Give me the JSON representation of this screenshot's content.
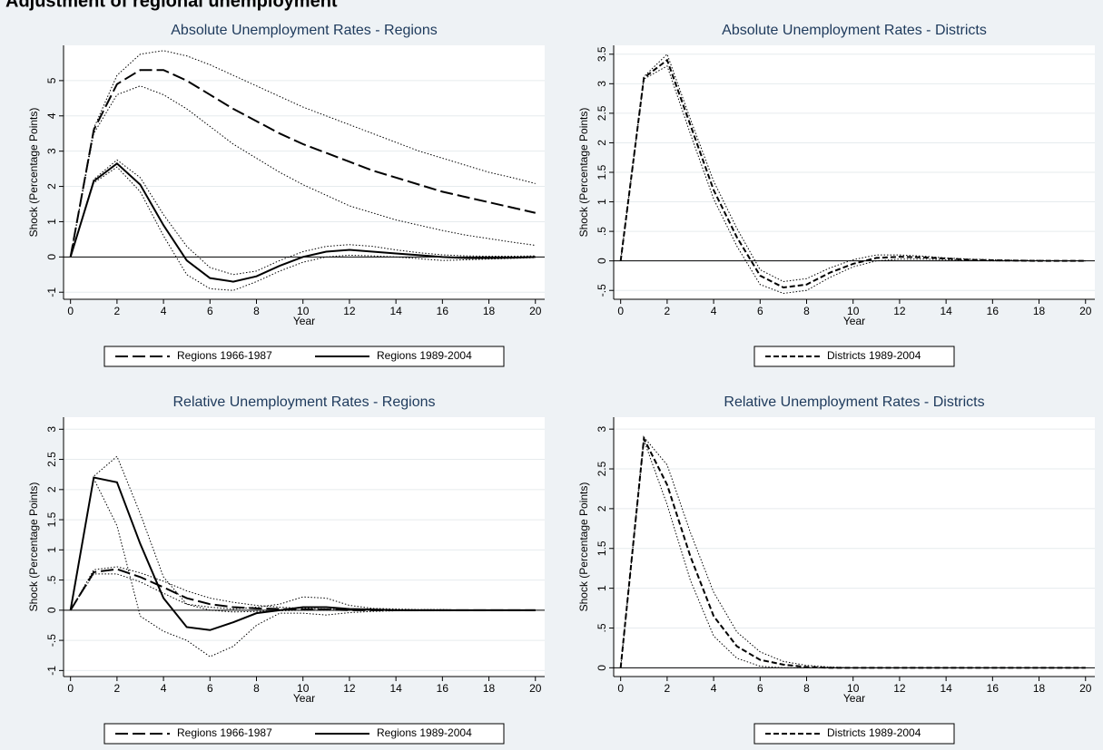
{
  "title": "Adjustment of regional unemployment",
  "chart_data": [
    {
      "type": "line",
      "title": "Absolute Unemployment Rates - Regions",
      "x_label": "Year",
      "y_label": "Shock (Percentage Points)",
      "x": [
        0,
        1,
        2,
        3,
        4,
        5,
        6,
        7,
        8,
        9,
        10,
        11,
        12,
        13,
        14,
        15,
        16,
        17,
        18,
        19,
        20
      ],
      "xlim": [
        -0.3,
        20.4
      ],
      "xticks": [
        0,
        2,
        4,
        6,
        8,
        10,
        12,
        14,
        16,
        18,
        20
      ],
      "ylim": [
        -1.2,
        6
      ],
      "yticks": [
        -1,
        0,
        1,
        2,
        3,
        4,
        5
      ],
      "grid": true,
      "legend": "bottom",
      "series": [
        {
          "name": "Regions 1966-1987",
          "color": "#000000",
          "style": "dash",
          "values": [
            0,
            3.6,
            4.9,
            5.3,
            5.3,
            5.0,
            4.6,
            4.2,
            3.85,
            3.5,
            3.2,
            2.95,
            2.7,
            2.45,
            2.25,
            2.05,
            1.85,
            1.7,
            1.55,
            1.4,
            1.25
          ],
          "upper": [
            0,
            3.65,
            5.15,
            5.75,
            5.85,
            5.7,
            5.45,
            5.15,
            4.85,
            4.55,
            4.25,
            4.0,
            3.75,
            3.5,
            3.25,
            3.0,
            2.8,
            2.6,
            2.4,
            2.25,
            2.08
          ],
          "lower": [
            0,
            3.5,
            4.6,
            4.85,
            4.6,
            4.2,
            3.7,
            3.2,
            2.8,
            2.4,
            2.05,
            1.75,
            1.45,
            1.25,
            1.05,
            0.9,
            0.75,
            0.62,
            0.52,
            0.42,
            0.33
          ]
        },
        {
          "name": "Regions 1989-2004",
          "color": "#000000",
          "style": "solid",
          "values": [
            0,
            2.15,
            2.65,
            2.05,
            0.9,
            -0.1,
            -0.6,
            -0.7,
            -0.55,
            -0.25,
            0,
            0.15,
            0.2,
            0.15,
            0.1,
            0.05,
            0,
            -0.03,
            -0.03,
            -0.02,
            0
          ],
          "upper": [
            0,
            2.2,
            2.75,
            2.25,
            1.2,
            0.3,
            -0.3,
            -0.5,
            -0.4,
            -0.1,
            0.15,
            0.3,
            0.35,
            0.3,
            0.2,
            0.12,
            0.06,
            0.03,
            0.02,
            0.02,
            0.03
          ],
          "lower": [
            0,
            2.1,
            2.55,
            1.85,
            0.6,
            -0.5,
            -0.9,
            -0.95,
            -0.7,
            -0.4,
            -0.15,
            0,
            0.05,
            0.03,
            0,
            -0.05,
            -0.1,
            -0.08,
            -0.06,
            -0.04,
            -0.02
          ]
        }
      ]
    },
    {
      "type": "line",
      "title": "Absolute Unemployment Rates - Districts",
      "x_label": "Year",
      "y_label": "Shock (Percentage Points)",
      "x": [
        0,
        1,
        2,
        3,
        4,
        5,
        6,
        7,
        8,
        9,
        10,
        11,
        12,
        13,
        14,
        15,
        16,
        17,
        18,
        19,
        20
      ],
      "xlim": [
        -0.3,
        20.4
      ],
      "xticks": [
        0,
        2,
        4,
        6,
        8,
        10,
        12,
        14,
        16,
        18,
        20
      ],
      "ylim": [
        -0.65,
        3.65
      ],
      "yticks": [
        {
          "value": -0.5,
          "label": "-.5"
        },
        0,
        {
          "value": 0.5,
          "label": ".5"
        },
        1,
        1.5,
        2,
        2.5,
        3,
        3.5
      ],
      "grid": true,
      "legend": "bottom",
      "series": [
        {
          "name": "Districts 1989-2004",
          "color": "#000000",
          "style": "shortdash",
          "values": [
            0,
            3.1,
            3.4,
            2.3,
            1.2,
            0.4,
            -0.25,
            -0.45,
            -0.4,
            -0.2,
            -0.05,
            0.05,
            0.07,
            0.06,
            0.04,
            0.02,
            0.01,
            0.005,
            0,
            0,
            0
          ],
          "upper": [
            0,
            3.12,
            3.5,
            2.4,
            1.35,
            0.55,
            -0.15,
            -0.35,
            -0.3,
            -0.12,
            0.02,
            0.1,
            0.1,
            0.08,
            0.05,
            0.03,
            0.02,
            0.01,
            0.01,
            0,
            0
          ],
          "lower": [
            0,
            3.08,
            3.3,
            2.15,
            1.05,
            0.25,
            -0.4,
            -0.55,
            -0.5,
            -0.28,
            -0.1,
            0,
            0.03,
            0.03,
            0.02,
            0.01,
            0,
            0,
            0,
            0,
            0
          ]
        }
      ]
    },
    {
      "type": "line",
      "title": "Relative Unemployment Rates - Regions",
      "x_label": "Year",
      "y_label": "Shock (Percentage Points)",
      "x": [
        0,
        1,
        2,
        3,
        4,
        5,
        6,
        7,
        8,
        9,
        10,
        11,
        12,
        13,
        14,
        15,
        16,
        17,
        18,
        19,
        20
      ],
      "xlim": [
        -0.3,
        20.4
      ],
      "xticks": [
        0,
        2,
        4,
        6,
        8,
        10,
        12,
        14,
        16,
        18,
        20
      ],
      "ylim": [
        -1.1,
        3.2
      ],
      "yticks": [
        -1,
        {
          "value": -0.5,
          "label": "-.5"
        },
        0,
        {
          "value": 0.5,
          "label": ".5"
        },
        1,
        1.5,
        2,
        2.5,
        3
      ],
      "grid": true,
      "legend": "bottom",
      "series": [
        {
          "name": "Regions 1966-1987",
          "color": "#000000",
          "style": "dash",
          "values": [
            0,
            0.63,
            0.68,
            0.55,
            0.38,
            0.2,
            0.1,
            0.05,
            0.03,
            0.02,
            0.01,
            0.01,
            0,
            0,
            0,
            0,
            0,
            0,
            0,
            0,
            0
          ],
          "upper": [
            0,
            0.67,
            0.72,
            0.62,
            0.48,
            0.32,
            0.2,
            0.13,
            0.08,
            0.05,
            0.03,
            0.02,
            0.01,
            0.01,
            0,
            0,
            0,
            0,
            0,
            0,
            0
          ],
          "lower": [
            0,
            0.6,
            0.6,
            0.47,
            0.28,
            0.1,
            0,
            -0.03,
            -0.02,
            -0.01,
            0,
            0,
            0,
            0,
            0,
            0,
            0,
            0,
            0,
            0,
            0
          ]
        },
        {
          "name": "Regions 1989-2004",
          "color": "#000000",
          "style": "solid",
          "values": [
            0,
            2.2,
            2.12,
            1.1,
            0.2,
            -0.28,
            -0.33,
            -0.2,
            -0.05,
            0,
            0.05,
            0.05,
            0.02,
            0.01,
            0,
            0,
            0,
            0,
            0,
            0,
            0
          ],
          "upper": [
            0,
            2.22,
            2.55,
            1.6,
            0.55,
            0.1,
            0.05,
            0.02,
            0.05,
            0.1,
            0.22,
            0.2,
            0.08,
            0.03,
            0.02,
            0.01,
            0.01,
            0,
            0,
            0,
            0
          ],
          "lower": [
            0,
            2.18,
            1.4,
            -0.1,
            -0.35,
            -0.5,
            -0.77,
            -0.6,
            -0.25,
            -0.05,
            -0.05,
            -0.08,
            -0.04,
            -0.02,
            -0.01,
            -0.01,
            -0.01,
            0,
            0,
            0,
            0
          ]
        }
      ]
    },
    {
      "type": "line",
      "title": "Relative Unemployment Rates - Districts",
      "x_label": "Year",
      "y_label": "Shock (Percentage Points)",
      "x": [
        0,
        1,
        2,
        3,
        4,
        5,
        6,
        7,
        8,
        9,
        10,
        11,
        12,
        13,
        14,
        15,
        16,
        17,
        18,
        19,
        20
      ],
      "xlim": [
        -0.3,
        20.4
      ],
      "xticks": [
        0,
        2,
        4,
        6,
        8,
        10,
        12,
        14,
        16,
        18,
        20
      ],
      "ylim": [
        -0.11,
        3.15
      ],
      "yticks": [
        0,
        {
          "value": 0.5,
          "label": ".5"
        },
        1,
        1.5,
        2,
        2.5,
        3
      ],
      "grid": true,
      "legend": "bottom",
      "series": [
        {
          "name": "Districts 1989-2004",
          "color": "#000000",
          "style": "shortdash",
          "values": [
            0,
            2.88,
            2.3,
            1.4,
            0.65,
            0.27,
            0.1,
            0.04,
            0.01,
            0,
            0,
            0,
            0,
            0,
            0,
            0,
            0,
            0,
            0,
            0,
            0
          ],
          "upper": [
            0,
            2.9,
            2.55,
            1.7,
            0.95,
            0.45,
            0.2,
            0.08,
            0.03,
            0.01,
            0,
            0,
            0,
            0,
            0,
            0,
            0,
            0,
            0,
            0,
            0
          ],
          "lower": [
            0,
            2.86,
            2.05,
            1.1,
            0.4,
            0.12,
            0.02,
            0,
            0,
            0,
            0,
            0,
            0,
            0,
            0,
            0,
            0,
            0,
            0,
            0,
            0
          ]
        }
      ]
    }
  ]
}
